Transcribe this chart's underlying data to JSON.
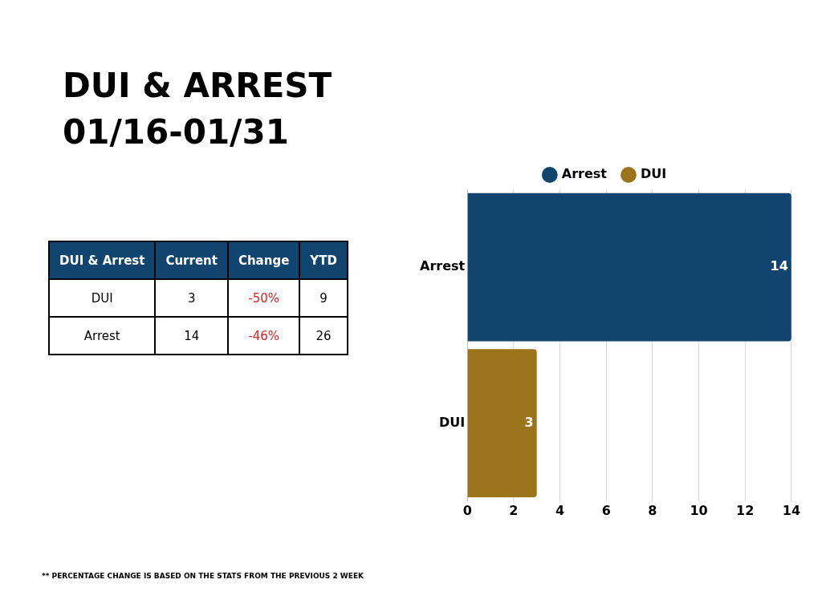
{
  "chart_data": [
    {
      "type": "bar",
      "title": "DUI & ARREST\n01/16-01/31",
      "orientation": "horizontal",
      "categories": [
        "Arrest",
        "DUI"
      ],
      "series": [
        {
          "name": "Arrest",
          "color": "#11456f",
          "values": [
            14,
            null
          ]
        },
        {
          "name": "DUI",
          "color": "#9b741c",
          "values": [
            null,
            3
          ]
        }
      ],
      "xlim": [
        0,
        14
      ],
      "xticks": [
        0,
        2,
        4,
        6,
        8,
        10,
        12,
        14
      ],
      "grid": "x",
      "legend": "top",
      "marker": "circle",
      "data_labels": true,
      "annotations": [
        "** PERCENTAGE CHANGE IS BASED ON THE STATS FROM THE PREVIOUS 2 WEEK"
      ]
    },
    {
      "type": "other",
      "ylabel": "DUI & Arrest",
      "categories": [
        "Current",
        "Change",
        "YTD"
      ],
      "y_categories": [
        "DUI",
        "Arrest"
      ],
      "cell_labels": [
        [
          "3",
          "-50%",
          "9"
        ],
        [
          "14",
          "-46%",
          "26"
        ]
      ]
    }
  ]
}
